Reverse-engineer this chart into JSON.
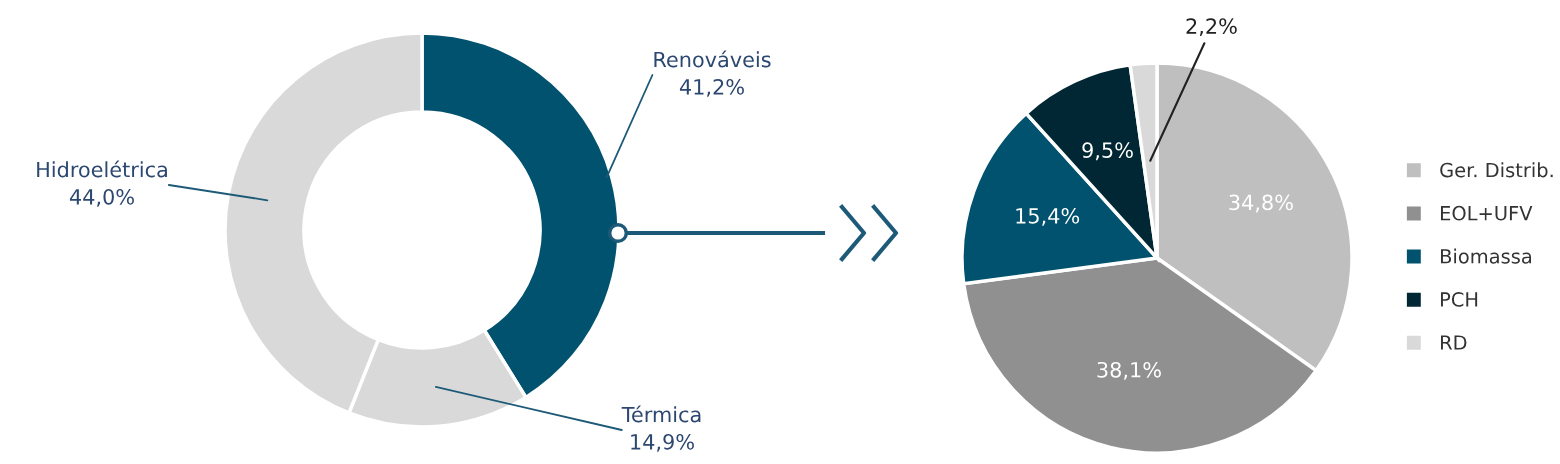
{
  "chart_data": [
    {
      "type": "donut",
      "categories": [
        "Renováveis",
        "Térmica",
        "Hidroelétrica"
      ],
      "values": [
        41.2,
        14.9,
        44.0
      ],
      "colors": [
        "#00526e",
        "#d9d9d9",
        "#d9d9d9"
      ],
      "value_labels": [
        "41,2%",
        "14,9%",
        "44,0%"
      ]
    },
    {
      "type": "pie",
      "categories": [
        "Ger. Distrib.",
        "EOL+UFV",
        "Biomassa",
        "PCH",
        "RD"
      ],
      "values": [
        34.8,
        38.1,
        15.4,
        9.5,
        2.2
      ],
      "colors": [
        "#bfbfbf",
        "#8f908f",
        "#00526e",
        "#002733",
        "#d9d9d9"
      ],
      "value_labels": [
        "34,8%",
        "38,1%",
        "15,4%",
        "9,5%",
        "2,2%"
      ],
      "legend": "right"
    }
  ]
}
